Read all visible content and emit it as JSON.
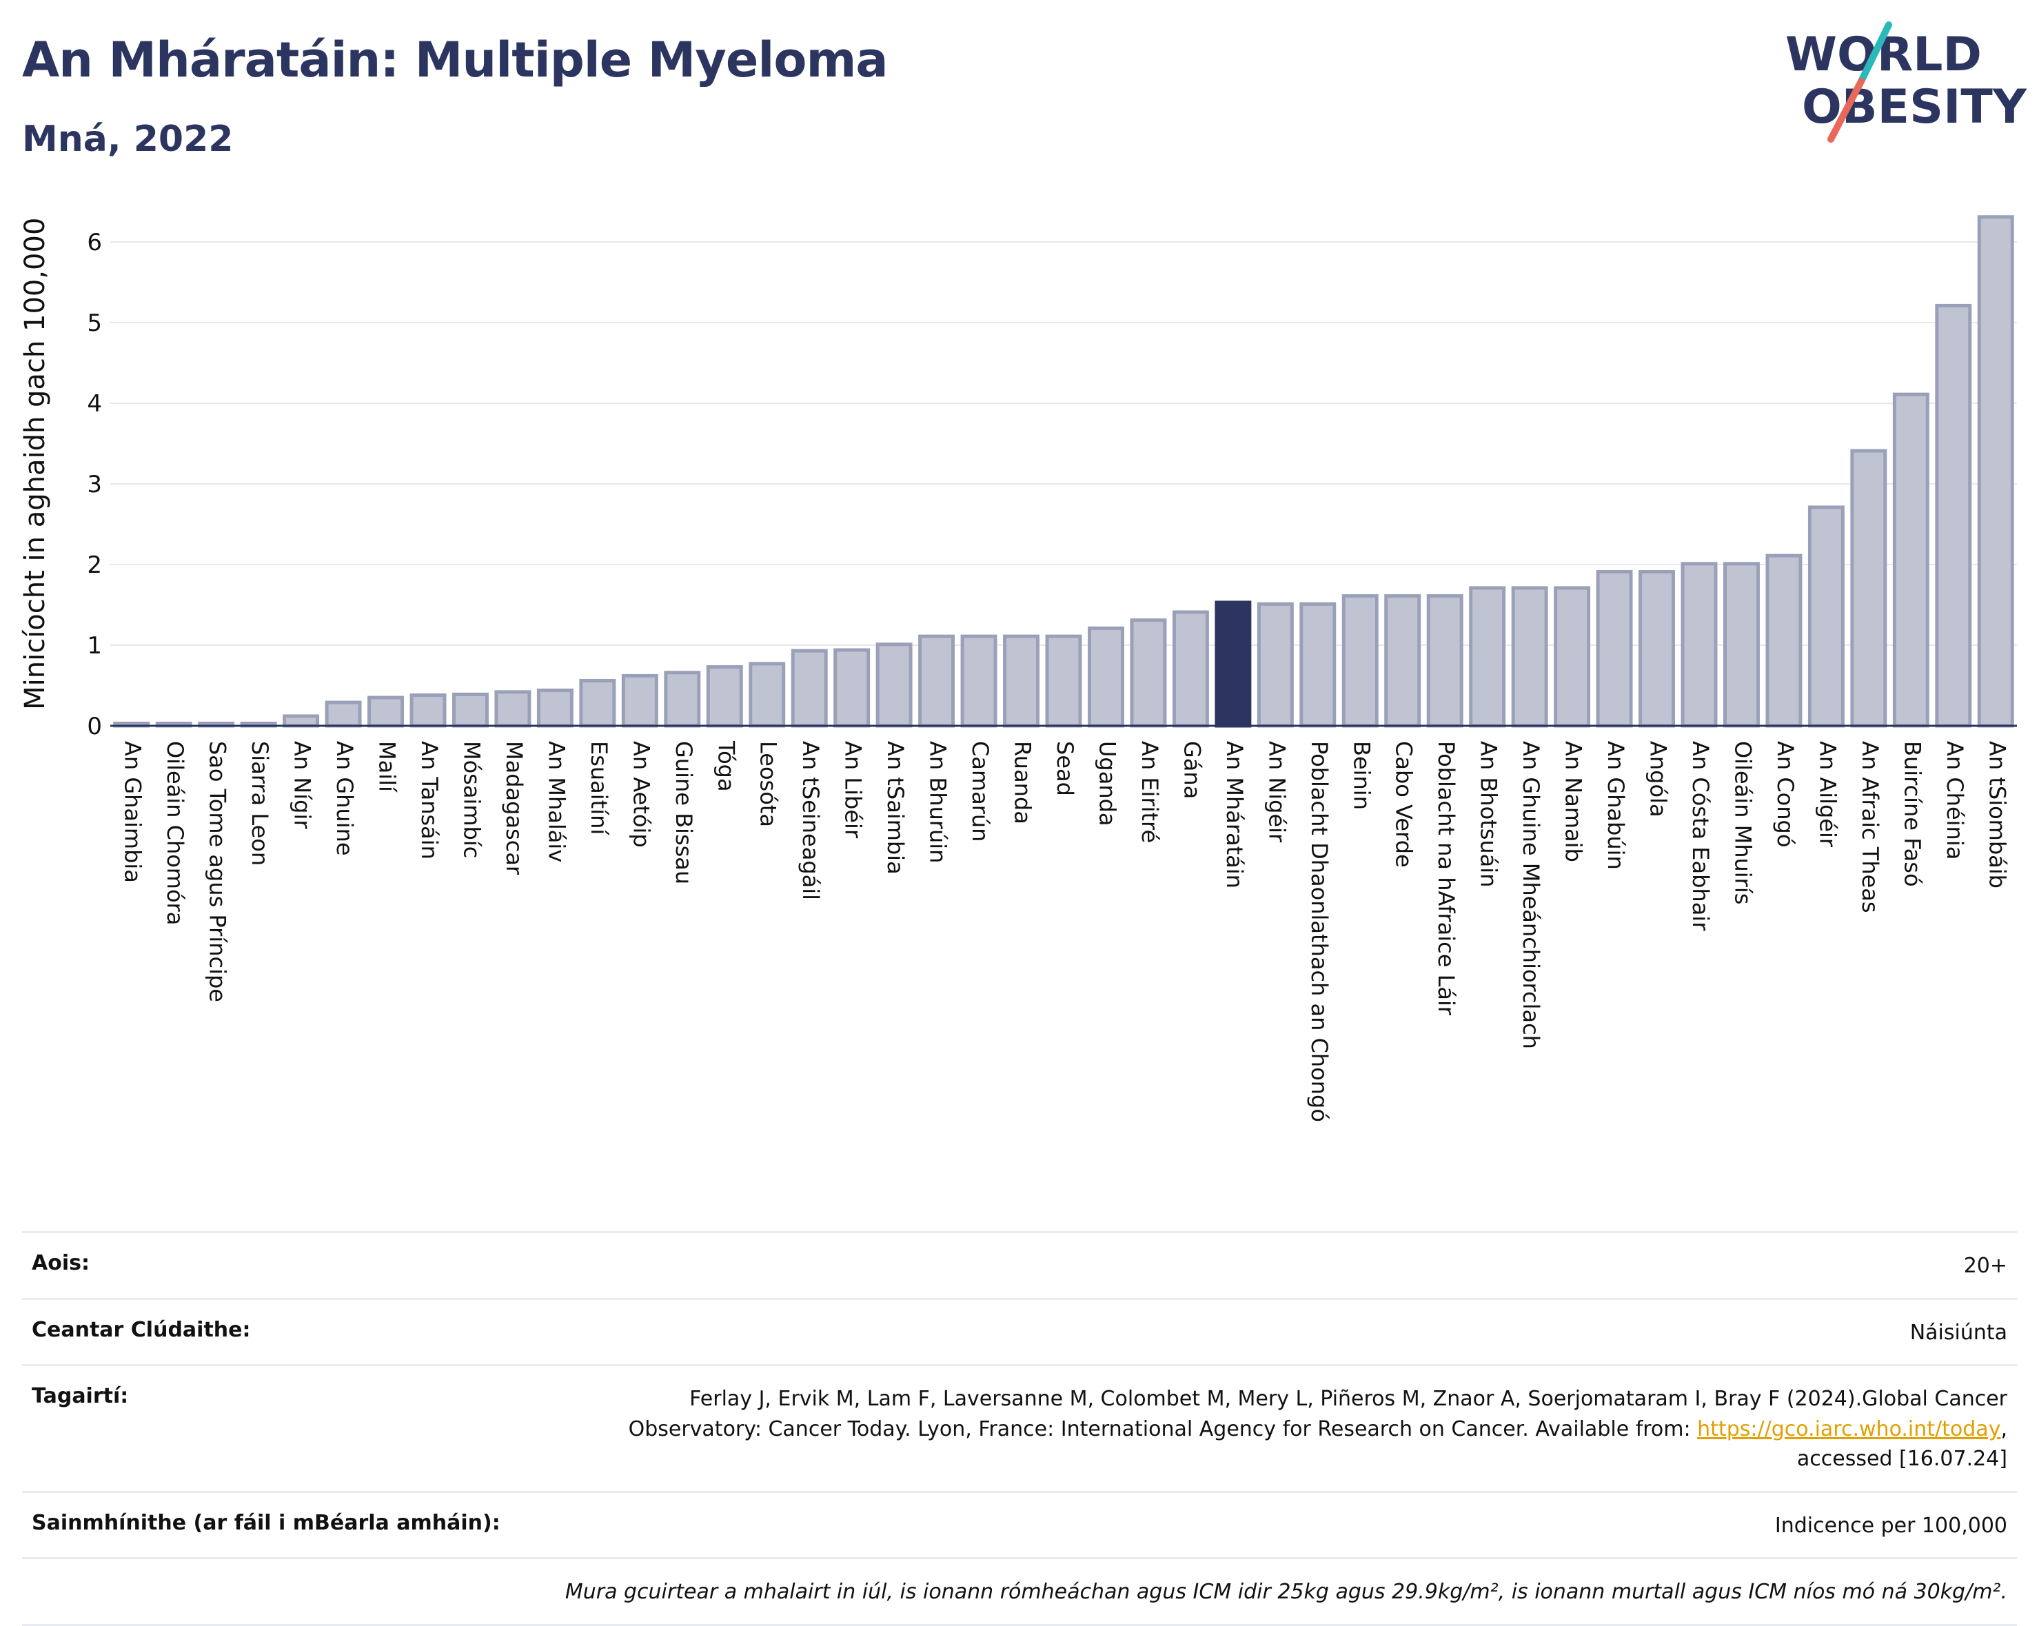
{
  "header": {
    "title": "An Mháratáin: Multiple Myeloma",
    "subtitle": "Mná, 2022"
  },
  "logo": {
    "line1": "WORLD",
    "line2": "OBESITY",
    "colors": {
      "text": "#2b3560",
      "slash_top": "#2bb8b8",
      "slash_bottom": "#e8685a"
    }
  },
  "colors": {
    "bar_default": "#c0c4d2",
    "bar_default_stroke": "#9aa0b8",
    "bar_highlight": "#2b3560",
    "grid": "#e6e8ef",
    "axis_text": "#111111"
  },
  "chart_data": {
    "type": "bar",
    "ylabel": "Minicíocht in aghaidh gach 100,000",
    "ylim": [
      0,
      6.6
    ],
    "yticks": [
      0,
      1,
      2,
      3,
      4,
      5,
      6
    ],
    "grid": true,
    "highlight": "An Mháratáin",
    "categories": [
      "An Ghaimbia",
      "Oileáin Chomóra",
      "Sao Tome agus Príncipe",
      "Siarra Leon",
      "An Nígir",
      "An Ghuine",
      "Mailí",
      "An Tansáin",
      "Mósaimbíc",
      "Madagascar",
      "An Mhaláiv",
      "Esuaitíní",
      "An Aetóip",
      "Guine Bissau",
      "Tóga",
      "Leosóta",
      "An tSeineagáil",
      "An Libéir",
      "An tSaimbia",
      "An Bhurúin",
      "Camarún",
      "Ruanda",
      "Sead",
      "Uganda",
      "An Eiritré",
      "Gána",
      "An Mháratáin",
      "An Nigéir",
      "Poblacht Dhaonlathach an Chongó",
      "Beinin",
      "Cabo Verde",
      "Poblacht na hAfraice Láir",
      "An Bhotsuáin",
      "An Ghuine Mheánchiorclach",
      "An Namaib",
      "An Ghabúin",
      "Angóla",
      "An Cósta Eabhair",
      "Oileáin Mhuirís",
      "An Congó",
      "An Ailgéir",
      "An Afraic Theas",
      "Buircíne Fasó",
      "An Chéinia",
      "An tSiombáib"
    ],
    "values": [
      0.03,
      0.03,
      0.03,
      0.03,
      0.12,
      0.29,
      0.35,
      0.38,
      0.39,
      0.42,
      0.44,
      0.56,
      0.62,
      0.66,
      0.73,
      0.77,
      0.93,
      0.94,
      1.01,
      1.11,
      1.11,
      1.11,
      1.11,
      1.21,
      1.31,
      1.41,
      1.53,
      1.51,
      1.51,
      1.61,
      1.61,
      1.61,
      1.71,
      1.71,
      1.71,
      1.91,
      1.91,
      2.01,
      2.01,
      2.11,
      2.71,
      3.41,
      4.11,
      5.21,
      6.31
    ]
  },
  "meta": {
    "age_label": "Aois:",
    "age_value": "20+",
    "area_label": "Ceantar Clúdaithe:",
    "area_value": "Náisiúnta",
    "ref_label": "Tagairtí:",
    "ref_text_1": "Ferlay J, Ervik M, Lam F, Laversanne M, Colombet M, Mery L, Piñeros M, Znaor A, Soerjomataram I, Bray F (2024).Global Cancer",
    "ref_text_2": "Observatory: Cancer Today. Lyon, France: International Agency for Research on Cancer. Available from:",
    "ref_link": "https://gco.iarc.who.int/today",
    "ref_text_3": ",",
    "ref_text_4": "accessed [16.07.24]",
    "def_label": "Sainmhínithe (ar fáil i mBéarla amháin):",
    "def_value": "Indicence per 100,000",
    "note": "Mura gcuirtear a mhalairt in iúl, is ionann rómheáchan agus ICM idir 25kg agus 29.9kg/m², is ionann murtall agus ICM níos mó ná 30kg/m²."
  }
}
